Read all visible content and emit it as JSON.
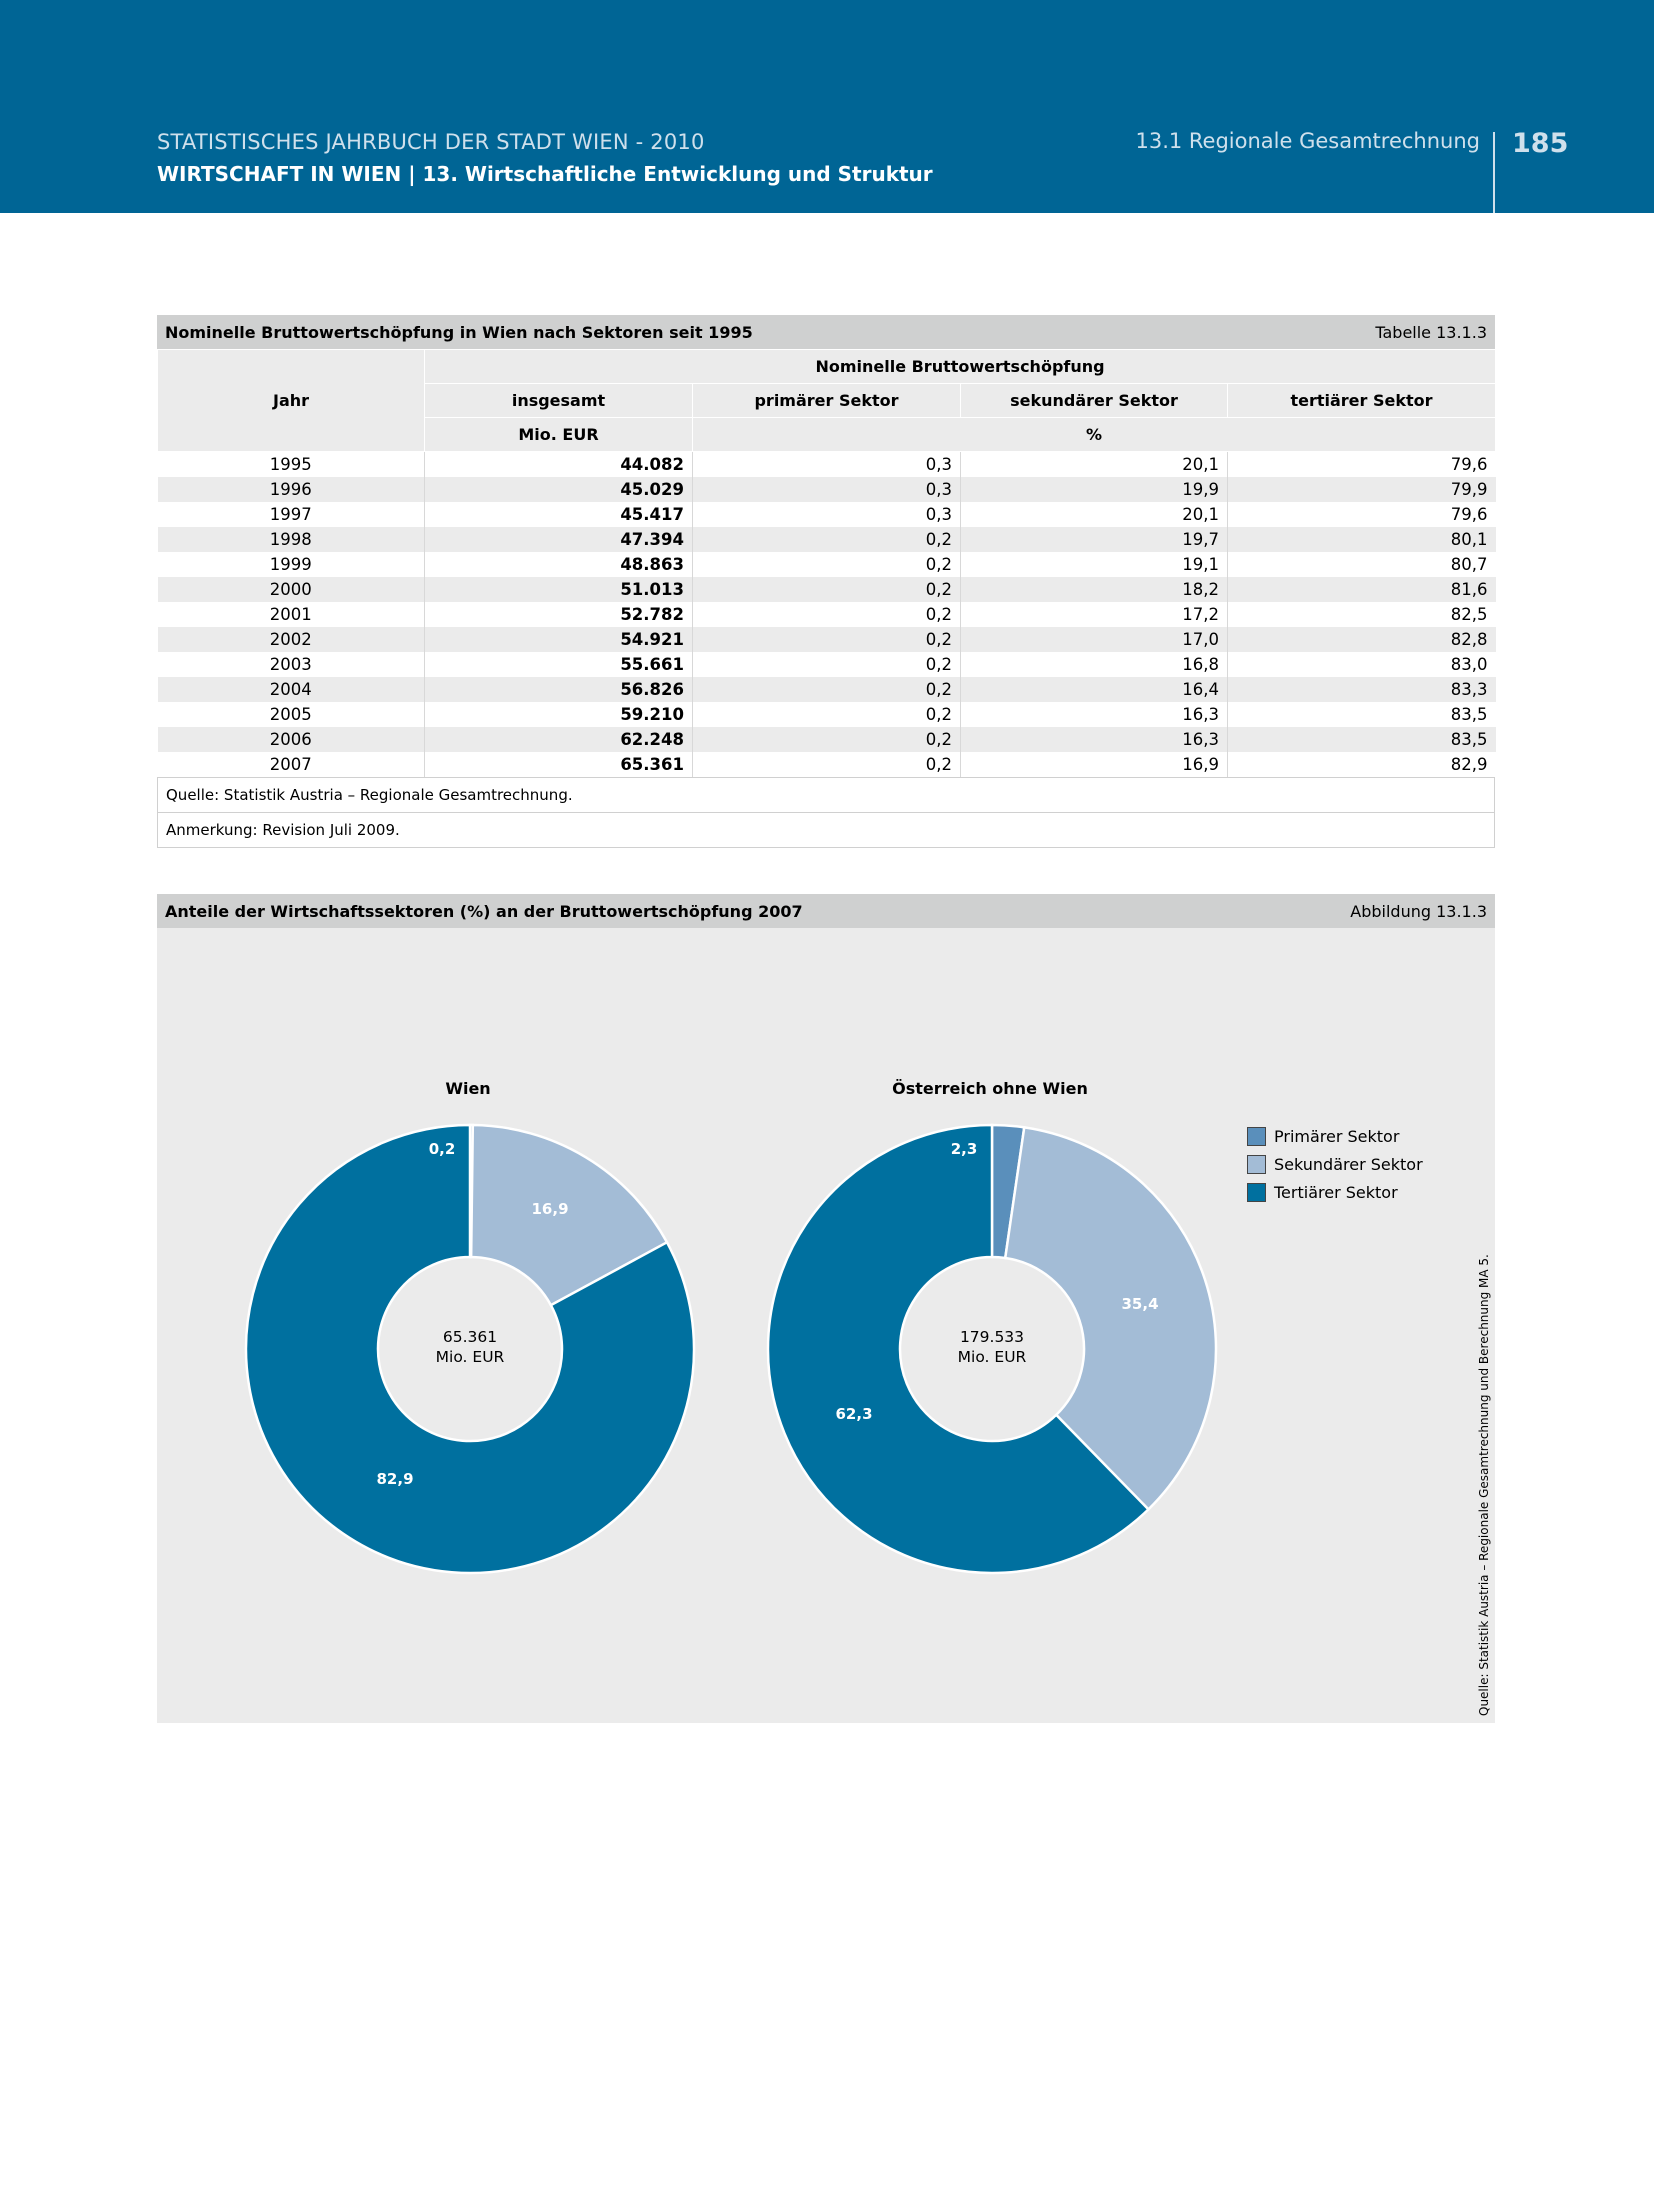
{
  "header": {
    "yearbook": "STATISTISCHES JAHRBUCH DER STADT WIEN - 2010",
    "chapter": "WIRTSCHAFT IN WIEN  |  13. Wirtschaftliche Entwicklung und Struktur",
    "section": "13.1 Regionale Gesamtrechnung",
    "page": "185"
  },
  "table": {
    "title": "Nominelle Bruttowertschöpfung in Wien nach Sektoren seit 1995",
    "label": "Tabelle 13.1.3",
    "h_jahr": "Jahr",
    "h_group": "Nominelle Bruttowertschöpfung",
    "h_insgesamt": "insgesamt",
    "h_primaer": "primärer Sektor",
    "h_sekundaer": "sekundärer Sektor",
    "h_tertiaer": "tertiärer Sektor",
    "u_mio": "Mio. EUR",
    "u_pct": "%",
    "rows": [
      [
        "1995",
        "44.082",
        "0,3",
        "20,1",
        "79,6"
      ],
      [
        "1996",
        "45.029",
        "0,3",
        "19,9",
        "79,9"
      ],
      [
        "1997",
        "45.417",
        "0,3",
        "20,1",
        "79,6"
      ],
      [
        "1998",
        "47.394",
        "0,2",
        "19,7",
        "80,1"
      ],
      [
        "1999",
        "48.863",
        "0,2",
        "19,1",
        "80,7"
      ],
      [
        "2000",
        "51.013",
        "0,2",
        "18,2",
        "81,6"
      ],
      [
        "2001",
        "52.782",
        "0,2",
        "17,2",
        "82,5"
      ],
      [
        "2002",
        "54.921",
        "0,2",
        "17,0",
        "82,8"
      ],
      [
        "2003",
        "55.661",
        "0,2",
        "16,8",
        "83,0"
      ],
      [
        "2004",
        "56.826",
        "0,2",
        "16,4",
        "83,3"
      ],
      [
        "2005",
        "59.210",
        "0,2",
        "16,3",
        "83,5"
      ],
      [
        "2006",
        "62.248",
        "0,2",
        "16,3",
        "83,5"
      ],
      [
        "2007",
        "65.361",
        "0,2",
        "16,9",
        "82,9"
      ]
    ],
    "source": "Quelle: Statistik Austria – Regionale Gesamtrechnung.",
    "remark": "Anmerkung: Revision Juli 2009."
  },
  "figure": {
    "title": "Anteile der Wirtschaftssektoren (%) an der Bruttowertschöpfung 2007",
    "label": "Abbildung 13.1.3",
    "source": "Quelle: Statistik Austria – Regionale Gesamtrechnung und Berechnung MA 5."
  },
  "chart_data": [
    {
      "type": "pie",
      "title": "Wien",
      "categories": [
        "Primärer Sektor",
        "Sekundärer Sektor",
        "Tertiärer Sektor"
      ],
      "values": [
        0.2,
        16.9,
        82.9
      ],
      "labels": [
        "0,2",
        "16,9",
        "82,9"
      ],
      "center_value": "65.361",
      "center_unit": "Mio. EUR",
      "colors": [
        "#5a8fbb",
        "#a3bcd6",
        "#00709f"
      ]
    },
    {
      "type": "pie",
      "title": "Österreich ohne Wien",
      "categories": [
        "Primärer Sektor",
        "Sekundärer Sektor",
        "Tertiärer Sektor"
      ],
      "values": [
        2.3,
        35.4,
        62.3
      ],
      "labels": [
        "2,3",
        "35,4",
        "62,3"
      ],
      "center_value": "179.533",
      "center_unit": "Mio. EUR",
      "colors": [
        "#5a8fbb",
        "#a3bcd6",
        "#00709f"
      ]
    }
  ],
  "legend": {
    "items": [
      {
        "label": "Primärer Sektor",
        "color": "#5a8fbb"
      },
      {
        "label": "Sekundärer Sektor",
        "color": "#a3bcd6"
      },
      {
        "label": "Tertiärer Sektor",
        "color": "#00709f"
      }
    ]
  }
}
